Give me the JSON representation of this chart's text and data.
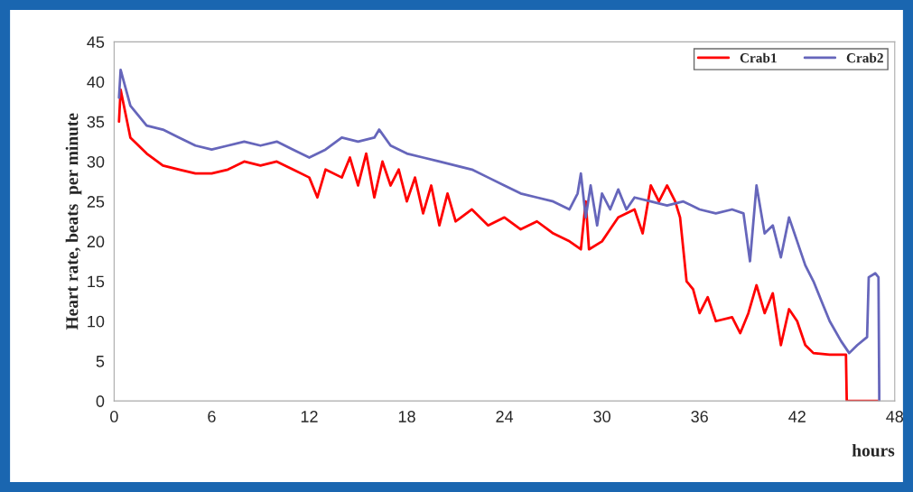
{
  "chart_data": {
    "type": "line",
    "xlabel": "hours",
    "ylabel": "Heart rate, beats  per minute",
    "xlim": [
      0,
      48
    ],
    "xticks": [
      0,
      6,
      12,
      18,
      24,
      30,
      36,
      42,
      48
    ],
    "ylim": [
      0,
      45
    ],
    "yticks": [
      0,
      5,
      10,
      15,
      20,
      25,
      30,
      35,
      40,
      45
    ],
    "grid": false,
    "legend": "top right",
    "marker": "none",
    "line_style": "solid",
    "series": [
      {
        "name": "Crab1",
        "color": "#ff0000",
        "x": [
          0.3,
          0.4,
          0.6,
          1,
          2,
          3,
          4,
          5,
          6,
          7,
          8,
          9,
          10,
          11,
          12,
          12.5,
          13,
          14,
          14.5,
          15,
          15.5,
          16,
          16.5,
          17,
          17.5,
          18,
          18.5,
          19,
          19.5,
          20,
          20.5,
          21,
          22,
          23,
          24,
          25,
          26,
          27,
          28,
          28.7,
          29,
          29.2,
          30,
          30.5,
          31,
          32,
          32.5,
          33,
          33.5,
          34,
          34.5,
          34.8,
          35.2,
          35.6,
          36,
          36.5,
          37,
          38,
          38.5,
          39,
          39.5,
          40,
          40.5,
          41,
          41.5,
          42,
          42.5,
          43,
          44,
          45,
          45.05,
          47
        ],
        "values": [
          35,
          39,
          37,
          33,
          31,
          29.5,
          29,
          28.5,
          28.5,
          29,
          30,
          29.5,
          30,
          29,
          28,
          25.5,
          29,
          28,
          30.5,
          27,
          31,
          25.5,
          30,
          27,
          29,
          25,
          28,
          23.5,
          27,
          22,
          26,
          22.5,
          24,
          22,
          23,
          21.5,
          22.5,
          21,
          20,
          19,
          25,
          19,
          20,
          21.5,
          23,
          24,
          21,
          27,
          25,
          27,
          25,
          23,
          15,
          14,
          11,
          13,
          10,
          10.5,
          8.5,
          11,
          14.5,
          11,
          13.5,
          7,
          11.5,
          10,
          7,
          6,
          5.8,
          5.8,
          0,
          0
        ]
      },
      {
        "name": "Crab2",
        "color": "#6666bb",
        "x": [
          0.3,
          0.4,
          1,
          2,
          3,
          4,
          5,
          6,
          7,
          8,
          9,
          10,
          11,
          12,
          13,
          14,
          15,
          16,
          16.3,
          17,
          18,
          19,
          20,
          21,
          22,
          23,
          24,
          25,
          26,
          27,
          28,
          28.5,
          28.7,
          29,
          29.3,
          29.7,
          30,
          30.5,
          31,
          31.5,
          32,
          33,
          34,
          35,
          36,
          37,
          38,
          38.7,
          39.1,
          39.5,
          40,
          40.5,
          41,
          41.5,
          42,
          42.5,
          43,
          43.5,
          44,
          44.7,
          45.2,
          45.7,
          46.3,
          46.4,
          46.8,
          47.0,
          47.05
        ],
        "values": [
          38,
          41.5,
          37,
          34.5,
          34,
          33,
          32,
          31.5,
          32,
          32.5,
          32,
          32.5,
          31.5,
          30.5,
          31.5,
          33,
          32.5,
          33,
          34,
          32,
          31,
          30.5,
          30,
          29.5,
          29,
          28,
          27,
          26,
          25.5,
          25,
          24,
          26,
          28.5,
          23,
          27,
          22,
          26,
          24,
          26.5,
          24,
          25.5,
          25,
          24.5,
          25,
          24,
          23.5,
          24,
          23.5,
          17.5,
          27,
          21,
          22,
          18,
          23,
          20,
          17,
          15,
          12.5,
          10,
          7.5,
          6,
          7,
          8,
          15.5,
          16,
          15.5,
          0
        ]
      }
    ]
  }
}
